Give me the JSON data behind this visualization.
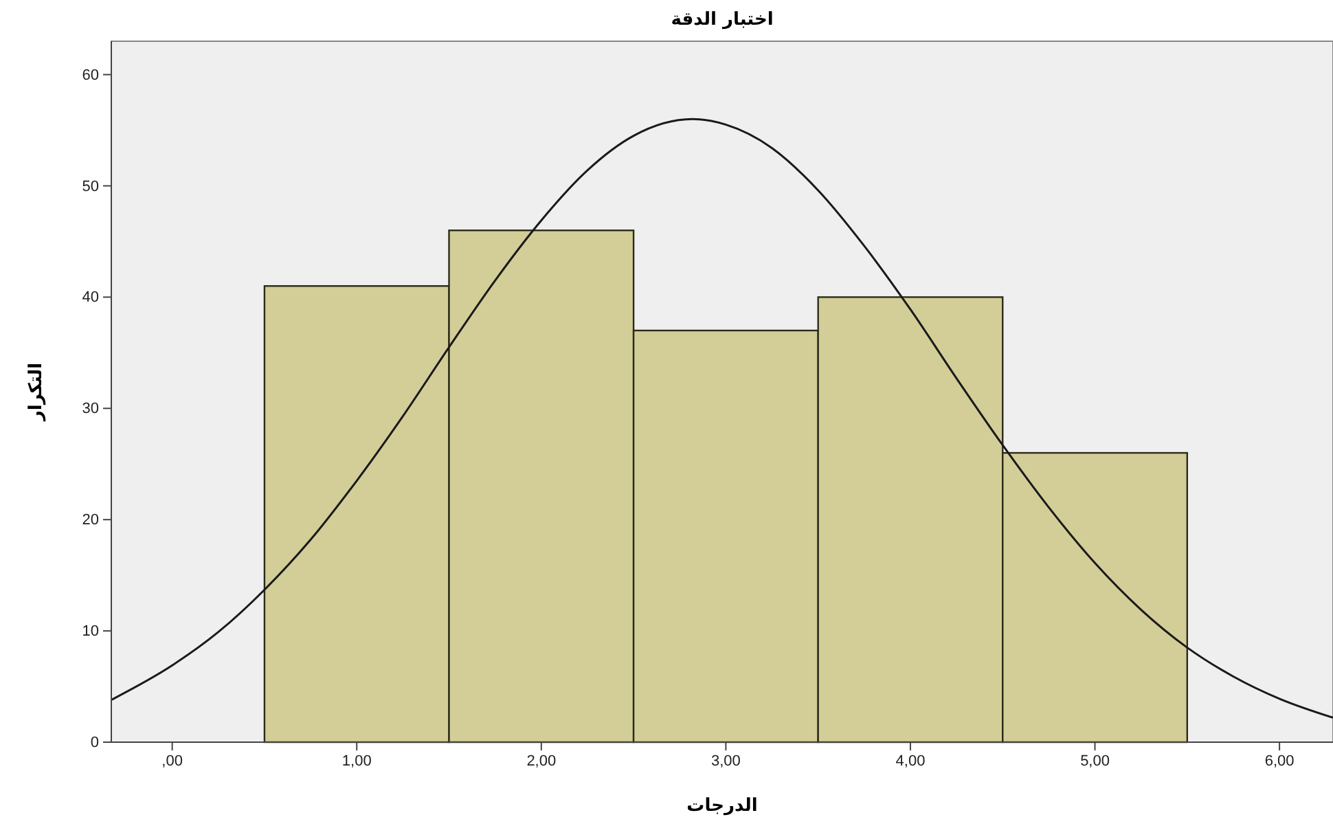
{
  "chart_data": {
    "type": "histogram",
    "title": "اختبار الدقة",
    "xlabel": "الدرجات",
    "ylabel": "التكرار",
    "bins": [
      0.5,
      1.5,
      2.5,
      3.5,
      4.5,
      5.5
    ],
    "values": [
      41,
      46,
      37,
      40,
      26
    ],
    "color": "#d3ce97",
    "series": [
      {
        "type": "line",
        "color": "#1a1a1a",
        "x": [
          -0.33,
          0,
          0.25,
          0.5,
          0.75,
          1.0,
          1.25,
          1.5,
          1.75,
          2.0,
          2.25,
          2.5,
          2.82,
          3.0,
          3.25,
          3.5,
          3.75,
          4.0,
          4.25,
          4.5,
          4.75,
          5.0,
          5.25,
          5.5,
          5.75,
          6.0,
          6.29
        ],
        "values": [
          3.8,
          6.9,
          9.9,
          13.7,
          18.2,
          23.5,
          29.3,
          35.5,
          41.5,
          46.9,
          51.4,
          54.5,
          56,
          55.5,
          53.4,
          49.6,
          44.6,
          38.9,
          32.7,
          26.7,
          21.1,
          16.1,
          11.9,
          8.5,
          5.9,
          3.9,
          2.2
        ]
      }
    ],
    "xlim": [
      -0.33,
      6.29
    ],
    "xticks": [
      {
        "value": 0,
        "label": ",00"
      },
      {
        "value": 1,
        "label": "1,00"
      },
      {
        "value": 2,
        "label": "2,00"
      },
      {
        "value": 3,
        "label": "3,00"
      },
      {
        "value": 4,
        "label": "4,00"
      },
      {
        "value": 5,
        "label": "5,00"
      },
      {
        "value": 6,
        "label": "6,00"
      }
    ],
    "ylim": [
      0,
      63
    ],
    "yticks": [
      0,
      10,
      20,
      30,
      40,
      50,
      60
    ]
  }
}
